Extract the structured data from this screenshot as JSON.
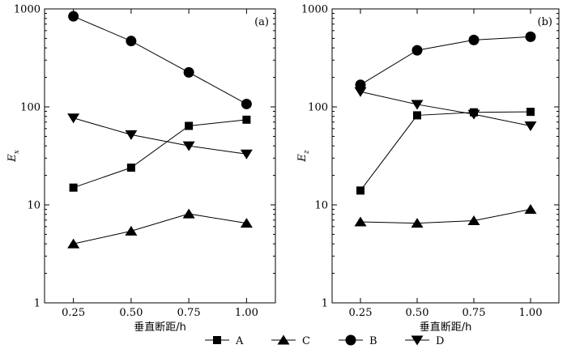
{
  "chart_data": [
    {
      "type": "line",
      "panel_label": "(a)",
      "xlabel": "垂直断距/h",
      "ylabel": "Ex",
      "ylabel_main": "E",
      "ylabel_sub": "x",
      "yscale": "log",
      "ylim": [
        1,
        1000
      ],
      "xlim": [
        0.125,
        1.125
      ],
      "x": [
        0.25,
        0.5,
        0.75,
        1.0
      ],
      "x_tick_labels": [
        "0.25",
        "0.50",
        "0.75",
        "1.00"
      ],
      "y_ticks": [
        1,
        10,
        100,
        1000
      ],
      "y_tick_labels": [
        "1",
        "10",
        "100",
        "1000"
      ],
      "series": [
        {
          "name": "A",
          "marker": "square",
          "values": [
            15,
            24,
            64,
            74
          ]
        },
        {
          "name": "C",
          "marker": "triangle-up",
          "values": [
            4,
            5.4,
            8.1,
            6.5
          ]
        },
        {
          "name": "B",
          "marker": "circle",
          "values": [
            840,
            470,
            225,
            107
          ]
        },
        {
          "name": "D",
          "marker": "triangle-down",
          "values": [
            77,
            52,
            40,
            33
          ]
        }
      ]
    },
    {
      "type": "line",
      "panel_label": "(b)",
      "xlabel": "垂直断距/h",
      "ylabel": "Ez",
      "ylabel_main": "E",
      "ylabel_sub": "z",
      "yscale": "log",
      "ylim": [
        1,
        1000
      ],
      "xlim": [
        0.125,
        1.125
      ],
      "x": [
        0.25,
        0.5,
        0.75,
        1.0
      ],
      "x_tick_labels": [
        "0.25",
        "0.50",
        "0.75",
        "1.00"
      ],
      "y_ticks": [
        1,
        10,
        100,
        1000
      ],
      "y_tick_labels": [
        "1",
        "10",
        "100",
        "1000"
      ],
      "series": [
        {
          "name": "A",
          "marker": "square",
          "values": [
            14,
            82,
            88,
            89
          ]
        },
        {
          "name": "C",
          "marker": "triangle-up",
          "values": [
            6.7,
            6.5,
            6.9,
            9
          ]
        },
        {
          "name": "B",
          "marker": "circle",
          "values": [
            168,
            378,
            482,
            520
          ]
        },
        {
          "name": "D",
          "marker": "triangle-down",
          "values": [
            143,
            106,
            84,
            64
          ]
        }
      ]
    }
  ],
  "legend": {
    "placement": "bottom-center",
    "items": [
      {
        "name": "A",
        "marker": "square"
      },
      {
        "name": "C",
        "marker": "triangle-up"
      },
      {
        "name": "B",
        "marker": "circle"
      },
      {
        "name": "D",
        "marker": "triangle-down"
      }
    ]
  },
  "colors": {
    "ink": "#000000",
    "background": "#ffffff"
  }
}
